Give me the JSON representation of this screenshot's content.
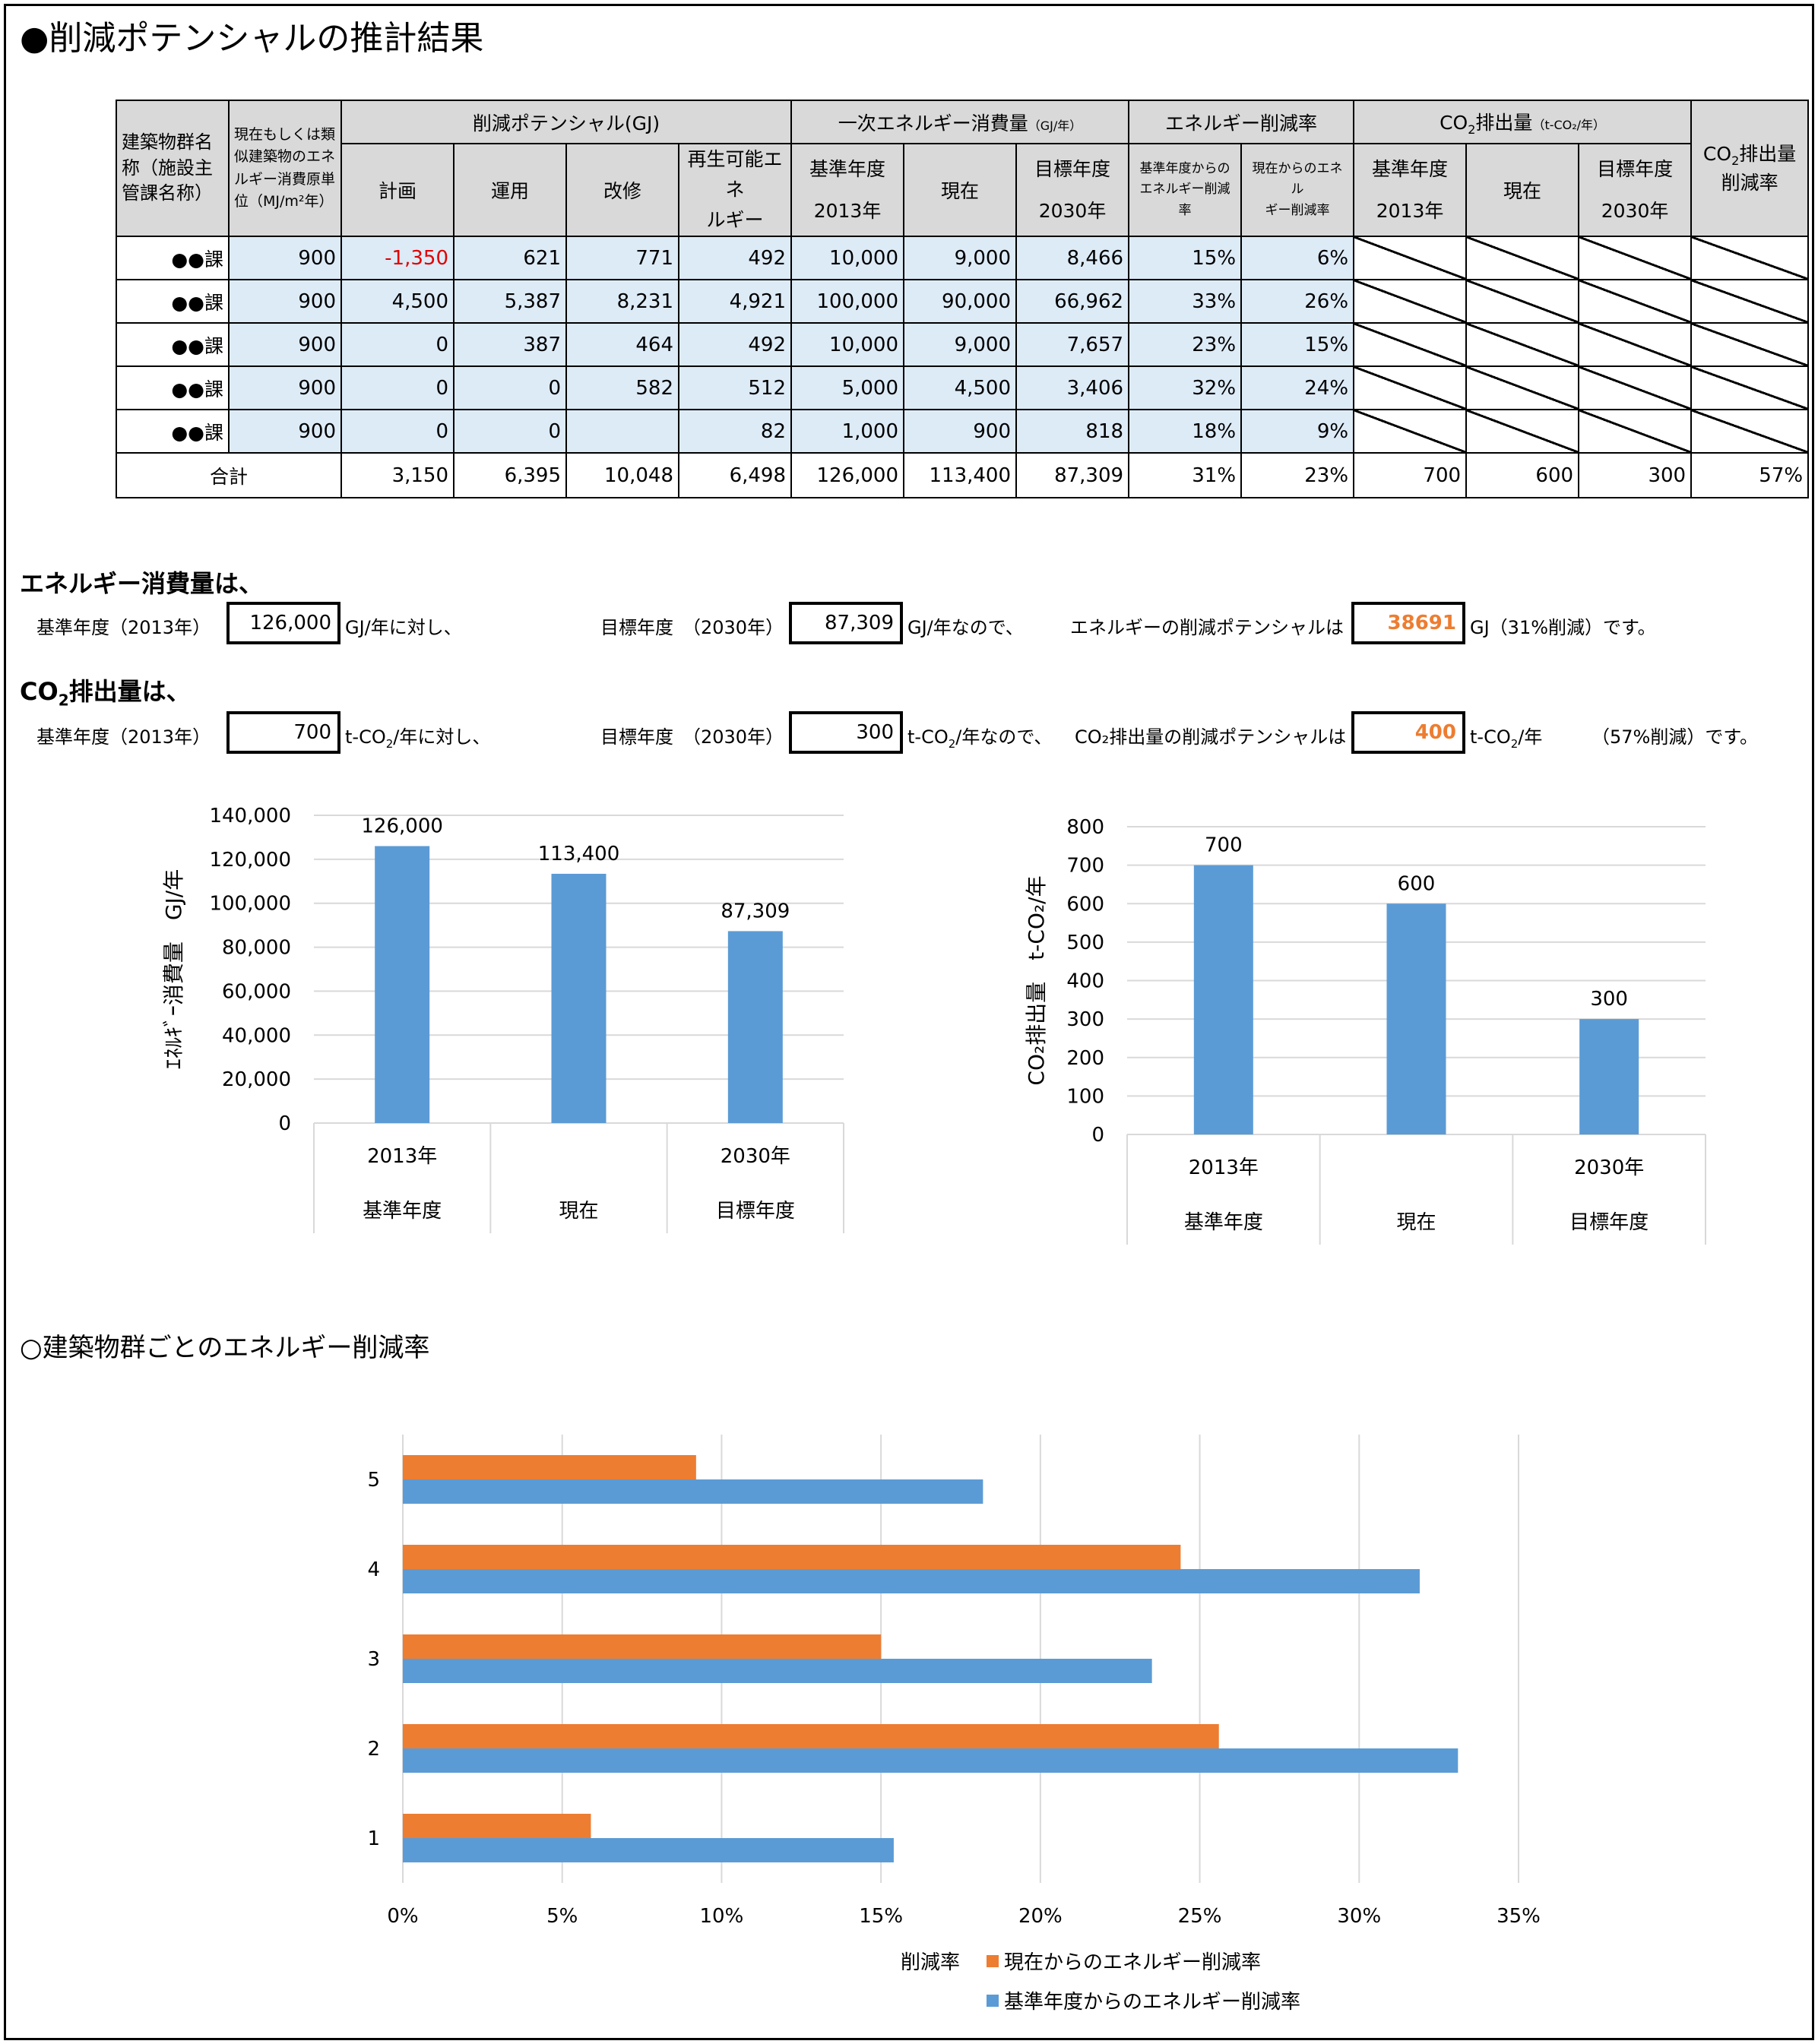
{
  "title": "●削減ポテンシャルの推計結果",
  "table": {
    "headers": {
      "name": "建築物群名称（施設主管課名称）",
      "unit_lines": [
        "現在もしくは類",
        "似建築物のエネ",
        "ルギー消費原単",
        "位（MJ/m²年）"
      ],
      "potential": "削減ポテンシャル(GJ)",
      "plan": "計画",
      "operation": "運用",
      "renovation": "改修",
      "renewable_lines": [
        "再生可能エネ",
        "ルギー"
      ],
      "primary": "一次エネルギー消費量",
      "primary_unit": "（GJ/年）",
      "base_year_label": "基準年度",
      "base_year": "2013年",
      "current": "現在",
      "target_year_label": "目標年度",
      "target_year": "2030年",
      "reduction_rate": "エネルギー削減率",
      "from_base_lines": [
        "基準年度からの",
        "エネルギー削減率"
      ],
      "from_current_lines": [
        "現在からのエネル",
        "ギー削減率"
      ],
      "co2_prefix": "CO",
      "co2_sub": "2",
      "co2_suffix": "排出量",
      "co2_unit": "（t-CO₂/年）",
      "co2_rate_line1_suffix": "排出量",
      "co2_rate_line2": "削減率"
    },
    "rows": [
      {
        "name": "●●課",
        "unit": "900",
        "plan": "-1,350",
        "operation": "621",
        "renovation": "771",
        "renewable": "492",
        "base": "10,000",
        "current": "9,000",
        "target": "8,466",
        "rate_base": "15%",
        "rate_current": "6%"
      },
      {
        "name": "●●課",
        "unit": "900",
        "plan": "4,500",
        "operation": "5,387",
        "renovation": "8,231",
        "renewable": "4,921",
        "base": "100,000",
        "current": "90,000",
        "target": "66,962",
        "rate_base": "33%",
        "rate_current": "26%"
      },
      {
        "name": "●●課",
        "unit": "900",
        "plan": "0",
        "operation": "387",
        "renovation": "464",
        "renewable": "492",
        "base": "10,000",
        "current": "9,000",
        "target": "7,657",
        "rate_base": "23%",
        "rate_current": "15%"
      },
      {
        "name": "●●課",
        "unit": "900",
        "plan": "0",
        "operation": "0",
        "renovation": "582",
        "renewable": "512",
        "base": "5,000",
        "current": "4,500",
        "target": "3,406",
        "rate_base": "32%",
        "rate_current": "24%"
      },
      {
        "name": "●●課",
        "unit": "900",
        "plan": "0",
        "operation": "0",
        "renovation": "",
        "renewable": "82",
        "base": "1,000",
        "current": "900",
        "target": "818",
        "rate_base": "18%",
        "rate_current": "9%"
      }
    ],
    "total": {
      "label": "合計",
      "plan": "3,150",
      "operation": "6,395",
      "renovation": "10,048",
      "renewable": "6,498",
      "base": "126,000",
      "current": "113,400",
      "target": "87,309",
      "rate_base": "31%",
      "rate_current": "23%",
      "co2_base": "700",
      "co2_current": "600",
      "co2_target": "300",
      "co2_rate": "57%"
    }
  },
  "energy_summary": {
    "heading": "エネルギー消費量は、",
    "base_label": "基準年度（2013年）",
    "base_value": "126,000",
    "base_unit": "GJ/年に対し、",
    "target_label": "目標年度　（2030年）",
    "target_value": "87,309",
    "target_unit": "GJ/年なので、",
    "potential_label": "エネルギーの削減ポテンシャルは",
    "potential_value": "38691",
    "potential_unit": "GJ（31%削減）です。"
  },
  "co2_summary": {
    "heading_prefix": "CO",
    "heading_sub": "2",
    "heading_suffix": "排出量は、",
    "base_label": "基準年度（2013年）",
    "base_value": "700",
    "unit_prefix": "t-CO",
    "unit_sub": "2",
    "base_unit_suffix": "/年に対し、",
    "target_label": "目標年度　（2030年）",
    "target_value": "300",
    "target_unit_suffix": "/年なので、",
    "potential_label": "CO₂排出量の削減ポテンシャルは",
    "potential_value": "400",
    "potential_unit_suffix": "/年",
    "potential_tail": "（57%削減）です。"
  },
  "bar_section_title": "○建築物群ごとのエネルギー削減率",
  "chart_data": [
    {
      "type": "bar",
      "categories": [
        [
          "2013年",
          "基準年度"
        ],
        [
          "",
          "現在"
        ],
        [
          "2030年",
          "目標年度"
        ]
      ],
      "values": [
        126000,
        113400,
        87309
      ],
      "data_labels": [
        "126,000",
        "113,400",
        "87,309"
      ],
      "ylabel": "ｴﾈﾙｷﾞｰ消費量　GJ/年",
      "ylim": [
        0,
        140000
      ],
      "yticks": [
        "0",
        "20,000",
        "40,000",
        "60,000",
        "80,000",
        "100,000",
        "120,000",
        "140,000"
      ],
      "color": "#5b9bd5",
      "grid": true
    },
    {
      "type": "bar",
      "categories": [
        [
          "2013年",
          "基準年度"
        ],
        [
          "",
          "現在"
        ],
        [
          "2030年",
          "目標年度"
        ]
      ],
      "values": [
        700,
        600,
        300
      ],
      "data_labels": [
        "700",
        "600",
        "300"
      ],
      "ylabel": "CO₂排出量　t-CO₂/年",
      "ylim": [
        0,
        800
      ],
      "yticks": [
        "0",
        "100",
        "200",
        "300",
        "400",
        "500",
        "600",
        "700",
        "800"
      ],
      "color": "#5b9bd5",
      "grid": true
    },
    {
      "type": "bar",
      "orientation": "horizontal",
      "categories": [
        "1",
        "2",
        "3",
        "4",
        "5"
      ],
      "series": [
        {
          "name": "現在からのエネルギー削減率",
          "values": [
            0.059,
            0.256,
            0.15,
            0.244,
            0.092
          ],
          "color": "#ed7d31"
        },
        {
          "name": "基準年度からのエネルギー削減率",
          "values": [
            0.154,
            0.331,
            0.235,
            0.319,
            0.182
          ],
          "color": "#5b9bd5"
        }
      ],
      "xlabel": "削減率",
      "xlim": [
        0,
        0.35
      ],
      "xticks": [
        "0%",
        "5%",
        "10%",
        "15%",
        "20%",
        "25%",
        "30%",
        "35%"
      ],
      "legend": "bottom",
      "grid": true
    }
  ]
}
